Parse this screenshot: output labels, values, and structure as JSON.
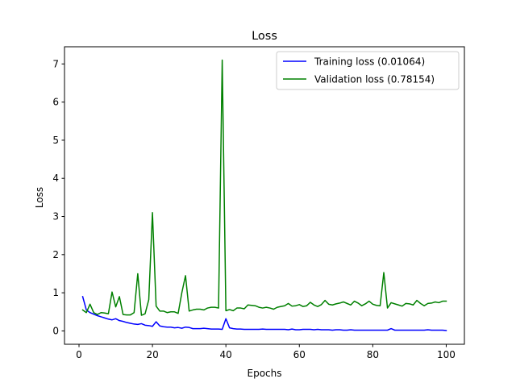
{
  "chart_data": {
    "type": "line",
    "title": "Loss",
    "xlabel": "Epochs",
    "ylabel": "Loss",
    "xlim": [
      -3.95,
      104.95
    ],
    "ylim": [
      -0.35,
      7.45
    ],
    "xticks": [
      0,
      20,
      40,
      60,
      80,
      100
    ],
    "yticks": [
      0,
      1,
      2,
      3,
      4,
      5,
      6,
      7
    ],
    "grid": false,
    "legend_position": "top-right",
    "series": [
      {
        "name": "Training loss (0.01064)",
        "color": "#0000ff",
        "x": [
          1,
          2,
          3,
          4,
          5,
          6,
          7,
          8,
          9,
          10,
          11,
          12,
          13,
          14,
          15,
          16,
          17,
          18,
          19,
          20,
          21,
          22,
          23,
          24,
          25,
          26,
          27,
          28,
          29,
          30,
          31,
          32,
          33,
          34,
          35,
          36,
          37,
          38,
          39,
          40,
          41,
          42,
          43,
          44,
          45,
          46,
          47,
          48,
          49,
          50,
          51,
          52,
          53,
          54,
          55,
          56,
          57,
          58,
          59,
          60,
          61,
          62,
          63,
          64,
          65,
          66,
          67,
          68,
          69,
          70,
          71,
          72,
          73,
          74,
          75,
          76,
          77,
          78,
          79,
          80,
          81,
          82,
          83,
          84,
          85,
          86,
          87,
          88,
          89,
          90,
          91,
          92,
          93,
          94,
          95,
          96,
          97,
          98,
          99,
          100
        ],
        "y": [
          0.9,
          0.55,
          0.48,
          0.44,
          0.4,
          0.37,
          0.34,
          0.31,
          0.29,
          0.32,
          0.27,
          0.25,
          0.22,
          0.2,
          0.18,
          0.17,
          0.19,
          0.15,
          0.14,
          0.12,
          0.24,
          0.13,
          0.11,
          0.1,
          0.1,
          0.08,
          0.09,
          0.07,
          0.1,
          0.09,
          0.06,
          0.06,
          0.06,
          0.07,
          0.06,
          0.05,
          0.05,
          0.05,
          0.04,
          0.32,
          0.08,
          0.06,
          0.05,
          0.05,
          0.04,
          0.04,
          0.04,
          0.04,
          0.04,
          0.05,
          0.04,
          0.04,
          0.04,
          0.04,
          0.04,
          0.04,
          0.03,
          0.05,
          0.03,
          0.03,
          0.04,
          0.04,
          0.04,
          0.03,
          0.04,
          0.03,
          0.03,
          0.03,
          0.02,
          0.03,
          0.03,
          0.02,
          0.02,
          0.03,
          0.02,
          0.02,
          0.02,
          0.02,
          0.02,
          0.02,
          0.02,
          0.02,
          0.02,
          0.02,
          0.06,
          0.02,
          0.02,
          0.02,
          0.02,
          0.02,
          0.02,
          0.02,
          0.02,
          0.02,
          0.03,
          0.02,
          0.02,
          0.02,
          0.02,
          0.01064
        ]
      },
      {
        "name": "Validation loss (0.78154)",
        "color": "#008000",
        "x": [
          1,
          2,
          3,
          4,
          5,
          6,
          7,
          8,
          9,
          10,
          11,
          12,
          13,
          14,
          15,
          16,
          17,
          18,
          19,
          20,
          21,
          22,
          23,
          24,
          25,
          26,
          27,
          28,
          29,
          30,
          31,
          32,
          33,
          34,
          35,
          36,
          37,
          38,
          39,
          40,
          41,
          42,
          43,
          44,
          45,
          46,
          47,
          48,
          49,
          50,
          51,
          52,
          53,
          54,
          55,
          56,
          57,
          58,
          59,
          60,
          61,
          62,
          63,
          64,
          65,
          66,
          67,
          68,
          69,
          70,
          71,
          72,
          73,
          74,
          75,
          76,
          77,
          78,
          79,
          80,
          81,
          82,
          83,
          84,
          85,
          86,
          87,
          88,
          89,
          90,
          91,
          92,
          93,
          94,
          95,
          96,
          97,
          98,
          99,
          100
        ],
        "y": [
          0.55,
          0.48,
          0.7,
          0.48,
          0.43,
          0.48,
          0.47,
          0.45,
          1.02,
          0.63,
          0.9,
          0.43,
          0.42,
          0.42,
          0.48,
          1.5,
          0.41,
          0.45,
          0.82,
          3.1,
          0.65,
          0.52,
          0.52,
          0.48,
          0.5,
          0.5,
          0.46,
          1.0,
          1.45,
          0.52,
          0.55,
          0.57,
          0.57,
          0.55,
          0.6,
          0.62,
          0.62,
          0.6,
          7.1,
          0.53,
          0.56,
          0.53,
          0.6,
          0.6,
          0.58,
          0.68,
          0.67,
          0.66,
          0.62,
          0.6,
          0.62,
          0.6,
          0.57,
          0.62,
          0.64,
          0.66,
          0.72,
          0.65,
          0.66,
          0.69,
          0.64,
          0.66,
          0.75,
          0.68,
          0.64,
          0.69,
          0.8,
          0.7,
          0.68,
          0.71,
          0.73,
          0.76,
          0.72,
          0.68,
          0.78,
          0.73,
          0.66,
          0.71,
          0.78,
          0.7,
          0.67,
          0.66,
          1.53,
          0.6,
          0.74,
          0.71,
          0.68,
          0.65,
          0.72,
          0.71,
          0.68,
          0.8,
          0.72,
          0.66,
          0.72,
          0.73,
          0.76,
          0.74,
          0.78,
          0.78154
        ]
      }
    ]
  }
}
